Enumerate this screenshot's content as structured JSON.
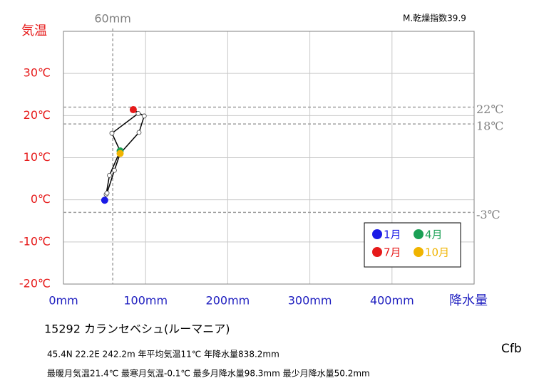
{
  "chart_data": {
    "type": "scatter",
    "y_label": "気温",
    "x_label": "降水量",
    "x": [
      50.2,
      52,
      56,
      69,
      59,
      91,
      85,
      98.3,
      92,
      69,
      62,
      53
    ],
    "values": [
      -0.1,
      1.3,
      5.8,
      11.6,
      15.8,
      20.5,
      21.4,
      19.9,
      16.0,
      11.0,
      7.0,
      1.6
    ],
    "marker_colors": [
      "#1a1ae6",
      "#ffffff",
      "#ffffff",
      "#1aa055",
      "#ffffff",
      "#ffffff",
      "#e61a1a",
      "#ffffff",
      "#ffffff",
      "#f0b400",
      "#ffffff",
      "#ffffff"
    ],
    "line_color": "#000000",
    "closed_line": true,
    "xlim": [
      0,
      500
    ],
    "xticks": [
      {
        "value": 0,
        "label": "0mm"
      },
      {
        "value": 100,
        "label": "100mm"
      },
      {
        "value": 200,
        "label": "200mm"
      },
      {
        "value": 300,
        "label": "300mm"
      },
      {
        "value": 400,
        "label": "400mm"
      }
    ],
    "ylim": [
      -20,
      40
    ],
    "yticks": [
      {
        "value": -20,
        "label": "-20℃"
      },
      {
        "value": -10,
        "label": "-10℃"
      },
      {
        "value": 0,
        "label": "0℃"
      },
      {
        "value": 10,
        "label": "10℃"
      },
      {
        "value": 20,
        "label": "20℃"
      },
      {
        "value": 30,
        "label": "30℃"
      }
    ],
    "grid": true,
    "reference_lines": {
      "x": [
        {
          "value": 60,
          "label": "60mm"
        }
      ],
      "y": [
        {
          "value": 22,
          "label": "22℃"
        },
        {
          "value": 18,
          "label": "18℃"
        },
        {
          "value": -3,
          "label": "-3℃"
        }
      ]
    },
    "legend": [
      {
        "name": "1月",
        "color": "#1a1ae6"
      },
      {
        "name": "4月",
        "color": "#1aa055"
      },
      {
        "name": "7月",
        "color": "#e61a1a"
      },
      {
        "name": "10月",
        "color": "#f0b400"
      }
    ],
    "dryness_index": "M.乾燥指数39.9",
    "station": "15292  カランセベシュ(ルーマニア)",
    "info_line1": "45.4N  22.2E  242.2m   年平均気温11℃  年降水量838.2mm",
    "info_line2": "最暖月気温21.4℃  最寒月気温-0.1℃  最多月降水量98.3mm  最少月降水量50.2mm",
    "climate_class": "Cfb"
  }
}
